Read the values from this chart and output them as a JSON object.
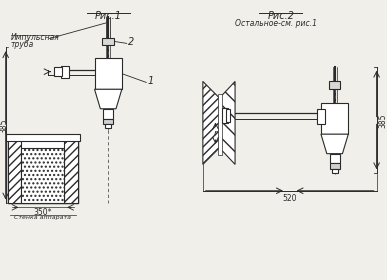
{
  "bg_color": "#f0efea",
  "line_color": "#2a2a2a",
  "fig1_title": "Рис.1",
  "fig2_title": "Рис.2",
  "fig2_subtitle": "Остальное-см. рис.1",
  "label_impulse_1": "Импульсная",
  "label_impulse_2": "труба",
  "label_stena": "Стенка аппарата",
  "dim_385_1": "385",
  "dim_385_2": "385",
  "dim_520": "520",
  "dim_350": "350*",
  "label_1": "1",
  "label_2": "2",
  "label_r": "r"
}
